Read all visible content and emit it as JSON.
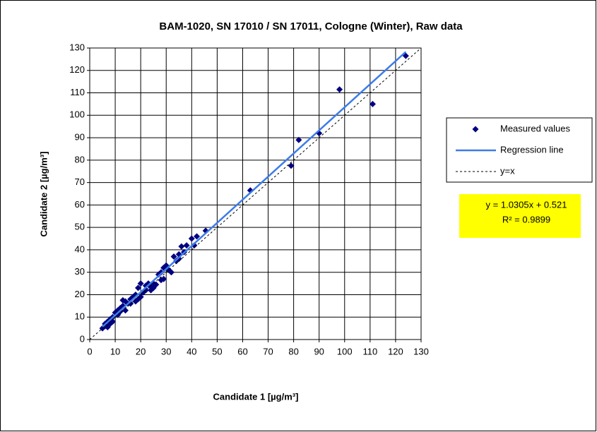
{
  "chart_data": {
    "type": "scatter",
    "title": "BAM-1020, SN 17010 / SN 17011, Cologne (Winter), Raw data",
    "x_label": "Candidate 1 [µg/m³]",
    "y_label": "Candidate 2 [µg/m³]",
    "xlim": [
      0,
      130
    ],
    "ylim": [
      0,
      130
    ],
    "xticks": [
      0,
      10,
      20,
      30,
      40,
      50,
      60,
      70,
      80,
      90,
      100,
      110,
      120,
      130
    ],
    "yticks": [
      0,
      10,
      20,
      30,
      40,
      50,
      60,
      70,
      80,
      90,
      100,
      110,
      120,
      130
    ],
    "grid": true,
    "legend": "right",
    "annotations": [
      "y = 1.0305x + 0.521",
      "R² = 0.9899"
    ],
    "annotation_color": "#ffff00",
    "series": [
      {
        "name": "Measured values",
        "color": "#000080",
        "style": "markers",
        "x": [
          124,
          98,
          111,
          90,
          82,
          79,
          63,
          45.5,
          42,
          40,
          41,
          38,
          36,
          35,
          33,
          35,
          32,
          30,
          29,
          28,
          29,
          28,
          27,
          25,
          24,
          23,
          22,
          21,
          20,
          19,
          19,
          18,
          17,
          16,
          15,
          14,
          13,
          13,
          12,
          11,
          10,
          9,
          8,
          7,
          6,
          5,
          6,
          7,
          8,
          9,
          11,
          12,
          14,
          16,
          18,
          20,
          22,
          26,
          31,
          34,
          37,
          25,
          24
        ],
        "values": [
          126.5,
          111.5,
          105,
          92,
          89,
          77.5,
          66.5,
          48.5,
          46,
          45,
          42,
          42,
          41.5,
          38,
          37,
          36,
          30,
          33,
          32,
          30,
          27,
          26.5,
          29,
          23,
          22,
          25,
          24,
          21,
          25,
          23,
          18,
          20,
          19,
          18,
          16,
          17,
          17.5,
          15,
          14,
          13,
          12,
          10,
          9,
          8,
          7,
          5,
          6,
          5.5,
          7,
          8,
          11,
          12.5,
          13,
          16,
          17,
          19,
          22,
          24.5,
          31,
          35,
          39,
          25,
          23.5
        ]
      },
      {
        "name": "Regression line",
        "color": "#3c7ce8",
        "style": "solid",
        "x": [
          5,
          124
        ],
        "values": [
          5.67,
          128.3
        ]
      },
      {
        "name": "y=x",
        "color": "#000000",
        "style": "dotted",
        "x": [
          0,
          130
        ],
        "values": [
          0,
          130
        ]
      }
    ]
  }
}
